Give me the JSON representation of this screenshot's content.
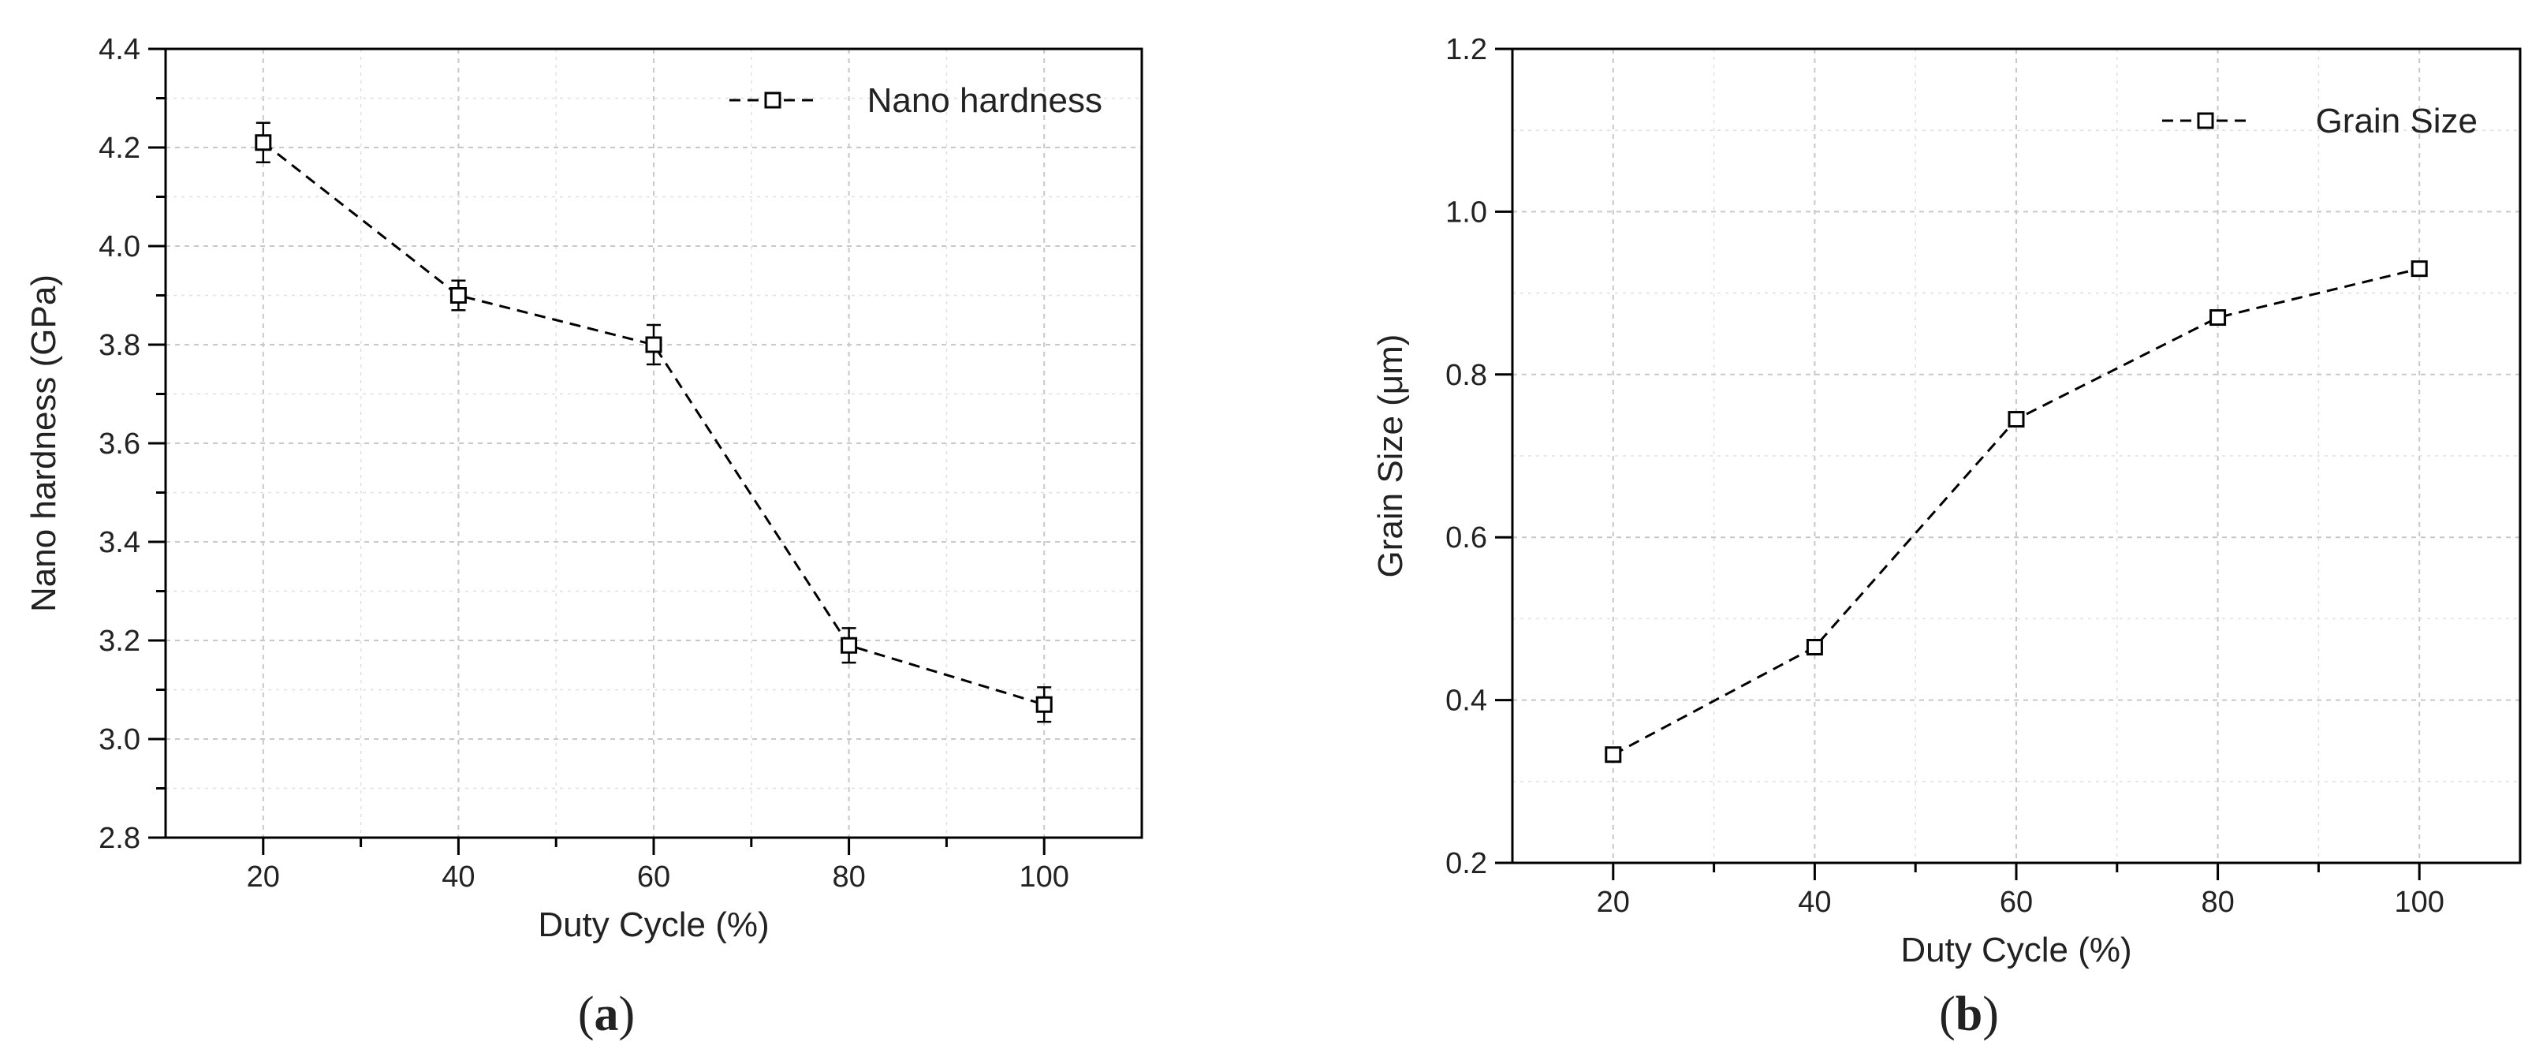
{
  "chart_data": [
    {
      "type": "line",
      "panel_label": "a",
      "title": "",
      "xlabel": "Duty Cycle (%)",
      "ylabel": "Nano hardness (GPa)",
      "xlim": [
        10,
        110
      ],
      "ylim": [
        2.8,
        4.4
      ],
      "xticks": [
        20,
        40,
        60,
        80,
        100
      ],
      "yticks": [
        2.8,
        3.0,
        3.2,
        3.4,
        3.6,
        3.8,
        4.0,
        4.2,
        4.4
      ],
      "xtick_labels": [
        "20",
        "40",
        "60",
        "80",
        "100"
      ],
      "ytick_labels": [
        "2.8",
        "3.0",
        "3.2",
        "3.4",
        "3.6",
        "3.8",
        "4.0",
        "4.2",
        "4.4"
      ],
      "grid": true,
      "legend_position": "top-right",
      "series": [
        {
          "name": "Nano hardness",
          "x": [
            20,
            40,
            60,
            80,
            100
          ],
          "y": [
            4.21,
            3.9,
            3.8,
            3.19,
            3.07
          ],
          "error": [
            0.04,
            0.03,
            0.04,
            0.035,
            0.035
          ],
          "marker": "open-square",
          "line": "dashed",
          "color": "#000000"
        }
      ]
    },
    {
      "type": "line",
      "panel_label": "b",
      "title": "",
      "xlabel": "Duty Cycle (%)",
      "ylabel": "Grain Size (μm)",
      "xlim": [
        10,
        110
      ],
      "ylim": [
        0.2,
        1.2
      ],
      "xticks": [
        20,
        40,
        60,
        80,
        100
      ],
      "yticks": [
        0.2,
        0.4,
        0.6,
        0.8,
        1.0,
        1.2
      ],
      "xtick_labels": [
        "20",
        "40",
        "60",
        "80",
        "100"
      ],
      "ytick_labels": [
        "0.2",
        "0.4",
        "0.6",
        "0.8",
        "1.0",
        "1.2"
      ],
      "grid": true,
      "legend_position": "top-right",
      "series": [
        {
          "name": "Grain Size",
          "x": [
            20,
            40,
            60,
            80,
            100
          ],
          "y": [
            0.333,
            0.465,
            0.745,
            0.87,
            0.93
          ],
          "marker": "open-square",
          "line": "dashed",
          "color": "#000000"
        }
      ]
    }
  ]
}
